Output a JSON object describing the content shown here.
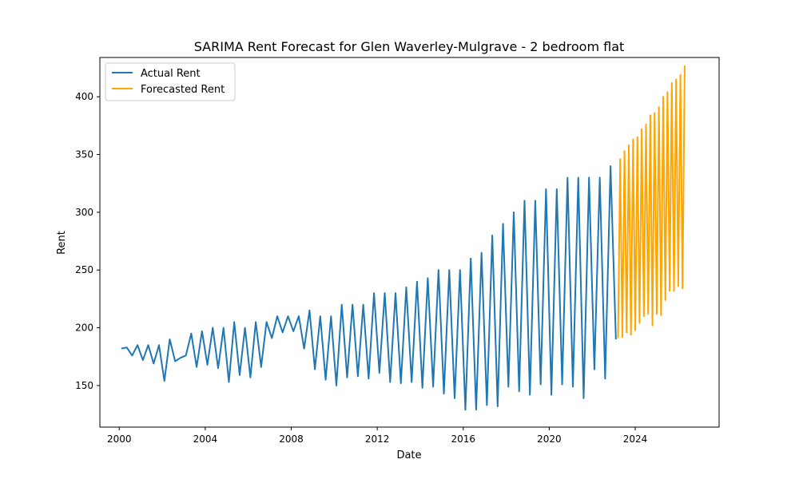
{
  "chart_data": {
    "type": "line",
    "title": "SARIMA Rent Forecast for Glen Waverley-Mulgrave - 2 bedroom flat",
    "xlabel": "Date",
    "ylabel": "Rent",
    "xlim": [
      1999.1,
      2027.9
    ],
    "ylim": [
      114,
      434
    ],
    "xticks": [
      2000,
      2004,
      2008,
      2012,
      2016,
      2020,
      2024
    ],
    "yticks": [
      150,
      200,
      250,
      300,
      350,
      400
    ],
    "grid": false,
    "legend_position": "top-left",
    "series": [
      {
        "name": "Actual Rent",
        "color": "#1f77b4",
        "x": [
          2000.1,
          2000.35,
          2000.6,
          2000.85,
          2001.1,
          2001.35,
          2001.6,
          2001.85,
          2002.1,
          2002.35,
          2002.6,
          2002.85,
          2003.1,
          2003.35,
          2003.6,
          2003.85,
          2004.1,
          2004.35,
          2004.6,
          2004.85,
          2005.1,
          2005.35,
          2005.6,
          2005.85,
          2006.1,
          2006.35,
          2006.6,
          2006.85,
          2007.1,
          2007.35,
          2007.6,
          2007.85,
          2008.1,
          2008.35,
          2008.6,
          2008.85,
          2009.1,
          2009.35,
          2009.6,
          2009.85,
          2010.1,
          2010.35,
          2010.6,
          2010.85,
          2011.1,
          2011.35,
          2011.6,
          2011.85,
          2012.1,
          2012.35,
          2012.6,
          2012.85,
          2013.1,
          2013.35,
          2013.6,
          2013.85,
          2014.1,
          2014.35,
          2014.6,
          2014.85,
          2015.1,
          2015.35,
          2015.6,
          2015.85,
          2016.1,
          2016.35,
          2016.6,
          2016.85,
          2017.1,
          2017.35,
          2017.6,
          2017.85,
          2018.1,
          2018.35,
          2018.6,
          2018.85,
          2019.1,
          2019.35,
          2019.6,
          2019.85,
          2020.1,
          2020.35,
          2020.6,
          2020.85,
          2021.1,
          2021.35,
          2021.6,
          2021.85,
          2022.1,
          2022.35,
          2022.6,
          2022.85,
          2023.1
        ],
        "values": [
          182,
          183,
          176,
          185,
          172,
          185,
          169,
          185,
          154,
          190,
          171,
          174,
          176,
          195,
          166,
          197,
          168,
          200,
          165,
          200,
          153,
          205,
          159,
          200,
          157,
          205,
          166,
          205,
          191,
          210,
          196,
          210,
          197,
          210,
          182,
          215,
          164,
          210,
          155,
          210,
          150,
          220,
          157,
          220,
          158,
          220,
          156,
          230,
          161,
          230,
          153,
          230,
          152,
          235,
          153,
          240,
          148,
          243,
          149,
          250,
          143,
          250,
          139,
          250,
          129,
          260,
          129,
          265,
          133,
          280,
          132,
          290,
          149,
          300,
          145,
          310,
          142,
          310,
          151,
          320,
          142,
          320,
          151,
          330,
          149,
          330,
          139,
          330,
          164,
          330,
          156,
          340,
          190
        ]
      },
      {
        "name": "Forecasted Rent",
        "color": "#ffa500",
        "x": [
          2023.2,
          2023.3,
          2023.4,
          2023.5,
          2023.6,
          2023.7,
          2023.8,
          2023.9,
          2024.0,
          2024.1,
          2024.2,
          2024.3,
          2024.4,
          2024.5,
          2024.6,
          2024.7,
          2024.8,
          2024.9,
          2025.0,
          2025.1,
          2025.2,
          2025.3,
          2025.4,
          2025.5,
          2025.6,
          2025.7,
          2025.8,
          2025.9,
          2026.0,
          2026.1,
          2026.2,
          2026.3
        ],
        "values": [
          191,
          346,
          192,
          353,
          196,
          358,
          194,
          363,
          198,
          365,
          204,
          372,
          210,
          376,
          212,
          384,
          202,
          386,
          212,
          391,
          211,
          400,
          224,
          404,
          232,
          412,
          232,
          415,
          236,
          419,
          234,
          427
        ]
      }
    ]
  }
}
